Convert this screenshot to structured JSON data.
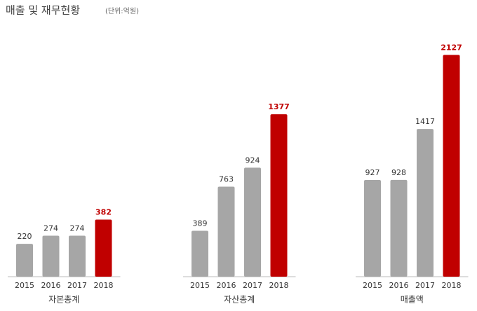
{
  "title": "매출 및 재무현황",
  "unit_note": "(단위:억원)",
  "chart_data": [
    {
      "type": "bar",
      "title": "자본총계",
      "categories": [
        "2015",
        "2016",
        "2017",
        "2018"
      ],
      "values": [
        220,
        274,
        274,
        382
      ],
      "colors": [
        "#a6a6a6",
        "#a6a6a6",
        "#a6a6a6",
        "#c00000"
      ],
      "ylim": [
        0,
        1500
      ]
    },
    {
      "type": "bar",
      "title": "자산총계",
      "categories": [
        "2015",
        "2016",
        "2017",
        "2018"
      ],
      "values": [
        389,
        763,
        924,
        1377
      ],
      "colors": [
        "#a6a6a6",
        "#a6a6a6",
        "#a6a6a6",
        "#c00000"
      ],
      "ylim": [
        0,
        1900
      ]
    },
    {
      "type": "bar",
      "title": "매출액",
      "categories": [
        "2015",
        "2016",
        "2017",
        "2018"
      ],
      "values": [
        927,
        928,
        1417,
        2127
      ],
      "colors": [
        "#a6a6a6",
        "#a6a6a6",
        "#a6a6a6",
        "#c00000"
      ],
      "ylim": [
        0,
        2150
      ]
    }
  ]
}
